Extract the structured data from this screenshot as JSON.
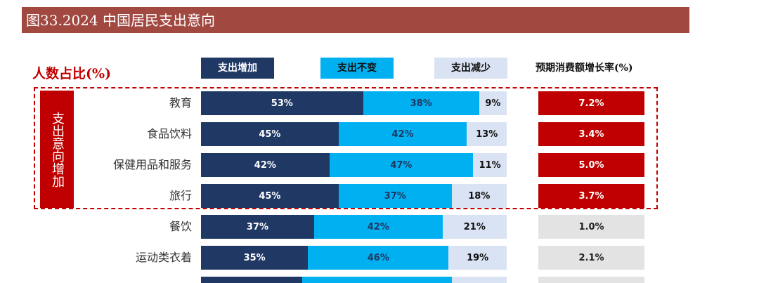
{
  "title": "图33.2024 中国居民支出意向",
  "y_label": "人数占比(%)",
  "growth_header": "预期消费额增长率(%)",
  "side_label": "支出意向增加",
  "colors": {
    "increase": "#1F3864",
    "unchanged": "#00B0F0",
    "decrease": "#DAE3F3",
    "title_bg": "#A14841",
    "highlight": "#C00000",
    "growth_normal": "#E3E3E3"
  },
  "chart_data": {
    "type": "bar",
    "orientation": "horizontal",
    "stacked": true,
    "unit": "%",
    "legend": [
      "支出增加",
      "支出不变",
      "支出减少"
    ],
    "categories": [
      "教育",
      "食品饮料",
      "保健用品和服务",
      "旅行",
      "餐饮",
      "运动类衣着"
    ],
    "series": [
      {
        "name": "支出增加",
        "values": [
          53,
          45,
          42,
          45,
          37,
          35
        ],
        "labels": [
          "53%",
          "45%",
          "42%",
          "45%",
          "37%",
          "35%"
        ]
      },
      {
        "name": "支出不变",
        "values": [
          38,
          42,
          47,
          37,
          42,
          46
        ],
        "labels": [
          "38%",
          "42%",
          "47%",
          "37%",
          "42%",
          "46%"
        ]
      },
      {
        "name": "支出减少",
        "values": [
          9,
          13,
          11,
          18,
          21,
          19
        ],
        "labels": [
          "9%",
          "13%",
          "11%",
          "18%",
          "21%",
          "19%"
        ]
      }
    ],
    "growth": {
      "name": "预期消费额增长率(%)",
      "values": [
        7.2,
        3.4,
        5.0,
        3.7,
        1.0,
        2.1
      ],
      "labels": [
        "7.2%",
        "3.4%",
        "5.0%",
        "3.7%",
        "1.0%",
        "2.1%"
      ],
      "highlighted": [
        true,
        true,
        true,
        true,
        false,
        false
      ]
    },
    "partial_row": {
      "values": [
        33,
        49,
        18
      ]
    }
  }
}
